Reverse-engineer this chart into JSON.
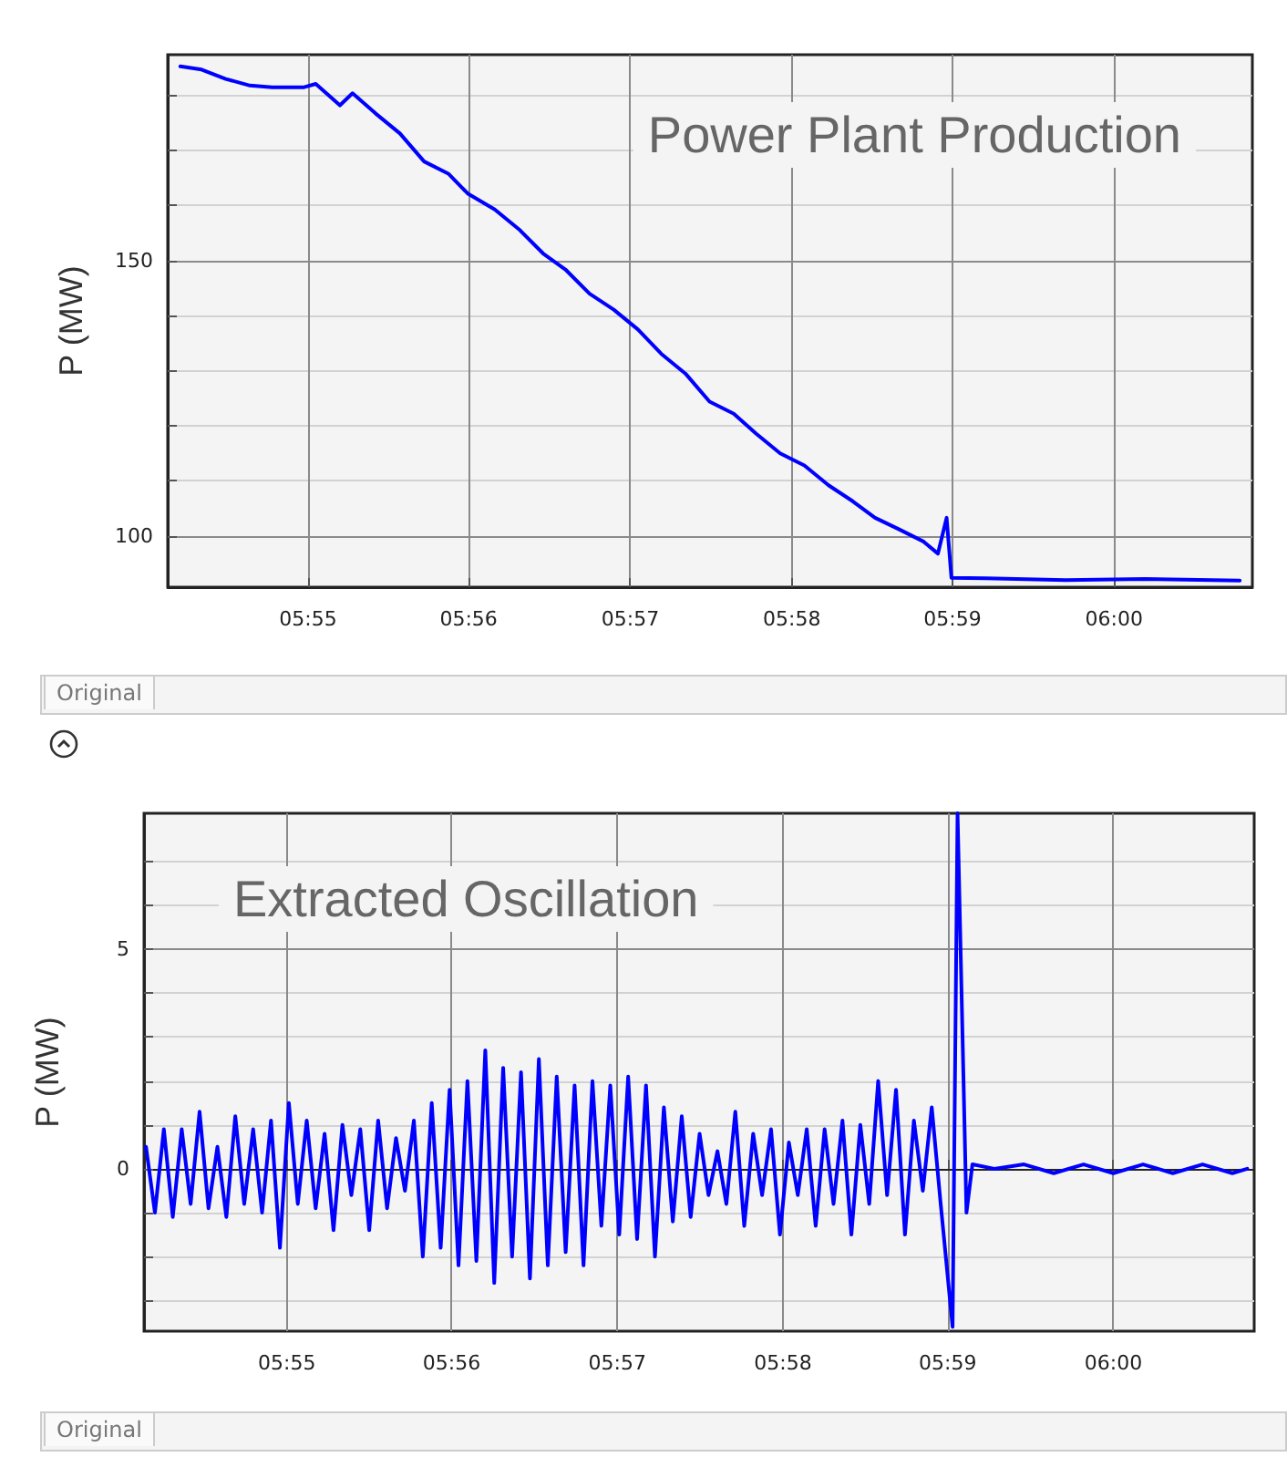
{
  "chart_data": [
    {
      "type": "line",
      "title": "Power Plant Production",
      "ylabel": "P (MW)",
      "color": "#0000ff",
      "marker": "none",
      "line_style": "solid",
      "grid": true,
      "x": [
        5.9035,
        5.9057,
        5.9082,
        5.9107,
        5.913,
        5.9163,
        5.9175,
        5.92,
        5.9213,
        5.9237,
        5.9262,
        5.9287,
        5.9312,
        5.9332,
        5.936,
        5.9385,
        5.941,
        5.9433,
        5.9458,
        5.9483,
        5.9508,
        5.9532,
        5.9557,
        5.9582,
        5.9607,
        5.963,
        5.9655,
        5.968,
        5.9705,
        5.973,
        5.9753,
        5.9778,
        5.9803,
        5.9818,
        5.9827,
        5.9832,
        5.9868,
        5.995,
        6.0032,
        6.013
      ],
      "values": [
        185.3,
        184.7,
        183,
        181.8,
        181.5,
        181.5,
        182.1,
        178.2,
        180.4,
        176.7,
        173.1,
        168,
        165.8,
        162.2,
        159.3,
        155.7,
        151.3,
        148.4,
        144,
        141.1,
        137.5,
        133.1,
        129.5,
        124.4,
        122.2,
        118.6,
        115,
        112.8,
        109.2,
        106.3,
        103.3,
        101.2,
        99,
        96.8,
        103.3,
        92.4,
        92.3,
        92,
        92.2,
        91.9
      ],
      "xlim": [
        5.9022,
        6.0143
      ],
      "xticks": [
        {
          "value": 5.9167,
          "label": "05:55"
        },
        {
          "value": 5.9333,
          "label": "05:56"
        },
        {
          "value": 5.95,
          "label": "05:57"
        },
        {
          "value": 5.9667,
          "label": "05:58"
        },
        {
          "value": 5.9833,
          "label": "05:59"
        },
        {
          "value": 6,
          "label": "06:00"
        }
      ],
      "ylim": [
        90.7,
        187.4
      ],
      "yticks": [
        100,
        {
          "value": 110,
          "label": null
        },
        {
          "value": 120,
          "label": null
        },
        {
          "value": 130,
          "label": null
        },
        {
          "value": 140,
          "label": null
        },
        150,
        {
          "value": 160,
          "label": null
        },
        {
          "value": 170,
          "label": null
        },
        {
          "value": 180,
          "label": null
        }
      ],
      "annotations": [
        "Original"
      ]
    },
    {
      "type": "line",
      "title": "Extracted Oscillation",
      "ylabel": "P (MW)",
      "color": "#0000ff",
      "marker": "none",
      "line_style": "solid",
      "grid": true,
      "x": [
        5.9025,
        5.9034,
        5.9043,
        5.9052,
        5.9061,
        5.907,
        5.9079,
        5.9088,
        5.9097,
        5.9106,
        5.9115,
        5.9124,
        5.9133,
        5.9142,
        5.9151,
        5.916,
        5.9169,
        5.9178,
        5.9187,
        5.9196,
        5.9205,
        5.9214,
        5.9223,
        5.9232,
        5.9241,
        5.925,
        5.9259,
        5.9268,
        5.9277,
        5.9286,
        5.9295,
        5.9304,
        5.9313,
        5.9322,
        5.9331,
        5.934,
        5.9349,
        5.9358,
        5.9367,
        5.9376,
        5.9385,
        5.9394,
        5.9403,
        5.9412,
        5.9421,
        5.943,
        5.9439,
        5.9448,
        5.9457,
        5.9466,
        5.9475,
        5.9484,
        5.9493,
        5.9502,
        5.9511,
        5.952,
        5.9529,
        5.9538,
        5.9547,
        5.9556,
        5.9565,
        5.9574,
        5.9583,
        5.9592,
        5.9601,
        5.961,
        5.9619,
        5.9628,
        5.9637,
        5.9646,
        5.9655,
        5.9664,
        5.9673,
        5.9682,
        5.9691,
        5.97,
        5.9709,
        5.9718,
        5.9727,
        5.9736,
        5.9745,
        5.9754,
        5.9763,
        5.9772,
        5.9781,
        5.979,
        5.9799,
        5.9808,
        5.9817,
        5.9826,
        5.9838,
        5.9843,
        5.9852,
        5.9858,
        5.988,
        5.991,
        5.994,
        5.997,
        6.0,
        6.003,
        6.006,
        6.009,
        6.012,
        6.0135
      ],
      "values": [
        0.5,
        -1.0,
        0.9,
        -1.1,
        0.9,
        -0.8,
        1.3,
        -0.9,
        0.5,
        -1.1,
        1.2,
        -0.8,
        0.9,
        -1.0,
        1.1,
        -1.8,
        1.5,
        -0.8,
        1.1,
        -0.9,
        0.8,
        -1.4,
        1.0,
        -0.6,
        0.9,
        -1.4,
        1.1,
        -0.9,
        0.7,
        -0.5,
        1.1,
        -2.0,
        1.5,
        -1.8,
        1.8,
        -2.2,
        2.0,
        -2.1,
        2.7,
        -2.6,
        2.3,
        -2.0,
        2.2,
        -2.5,
        2.5,
        -2.2,
        2.1,
        -1.9,
        1.9,
        -2.2,
        2.0,
        -1.3,
        1.9,
        -1.5,
        2.1,
        -1.6,
        1.9,
        -2.0,
        1.4,
        -1.2,
        1.2,
        -1.1,
        0.8,
        -0.6,
        0.4,
        -0.8,
        1.3,
        -1.3,
        0.8,
        -0.6,
        0.9,
        -1.5,
        0.6,
        -0.6,
        0.9,
        -1.3,
        0.9,
        -0.8,
        1.1,
        -1.5,
        1.0,
        -0.8,
        2.0,
        -0.6,
        1.8,
        -1.5,
        1.1,
        -0.5,
        1.4,
        -0.8,
        -3.6,
        8.1,
        -1.0,
        0.1,
        0,
        0.1,
        -0.1,
        0.1,
        -0.1,
        0.1,
        -0.1,
        0.1,
        -0.1,
        0
      ],
      "xlim": [
        5.9023,
        6.0142
      ],
      "xticks": [
        {
          "value": 5.9167,
          "label": "05:55"
        },
        {
          "value": 5.9333,
          "label": "05:56"
        },
        {
          "value": 5.95,
          "label": "05:57"
        },
        {
          "value": 5.9667,
          "label": "05:58"
        },
        {
          "value": 5.9833,
          "label": "05:59"
        },
        {
          "value": 6,
          "label": "06:00"
        }
      ],
      "ylim": [
        -3.7,
        8.1
      ],
      "yticks": [
        {
          "value": -3,
          "label": null
        },
        {
          "value": -2,
          "label": null
        },
        {
          "value": -1,
          "label": null
        },
        0,
        {
          "value": 1,
          "label": null
        },
        {
          "value": 2,
          "label": null
        },
        {
          "value": 3,
          "label": null
        },
        {
          "value": 4,
          "label": null
        },
        5,
        {
          "value": 6,
          "label": null
        },
        {
          "value": 7,
          "label": null
        }
      ],
      "annotations": [
        "Original"
      ]
    }
  ]
}
